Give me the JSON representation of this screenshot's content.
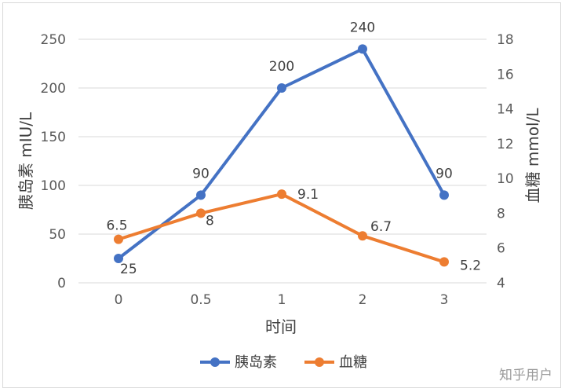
{
  "chart_data": {
    "type": "line",
    "title": "",
    "xlabel": "时间",
    "ylabel_left": "胰岛素 mIU/L",
    "ylabel_right": "血糖 mmol/L",
    "categories": [
      "0",
      "0.5",
      "1",
      "2",
      "3"
    ],
    "y_left": {
      "min": 0,
      "max": 250,
      "ticks": [
        "0",
        "50",
        "100",
        "150",
        "200",
        "250"
      ]
    },
    "y_right": {
      "min": 4,
      "max": 18,
      "ticks": [
        "4",
        "6",
        "8",
        "10",
        "12",
        "14",
        "16",
        "18"
      ]
    },
    "grid": true,
    "legend_position": "bottom",
    "series": [
      {
        "name": "胰岛素",
        "axis": "left",
        "color": "#4472C4",
        "values": [
          25,
          90,
          200,
          240,
          90
        ],
        "labels": [
          "25",
          "90",
          "200",
          "240",
          "90"
        ]
      },
      {
        "name": "血糖",
        "axis": "right",
        "color": "#ED7D31",
        "values": [
          6.5,
          8,
          9.1,
          6.7,
          5.2
        ],
        "labels": [
          "6.5",
          "8",
          "9.1",
          "6.7",
          "5.2"
        ]
      }
    ]
  },
  "watermark": "知乎用户"
}
